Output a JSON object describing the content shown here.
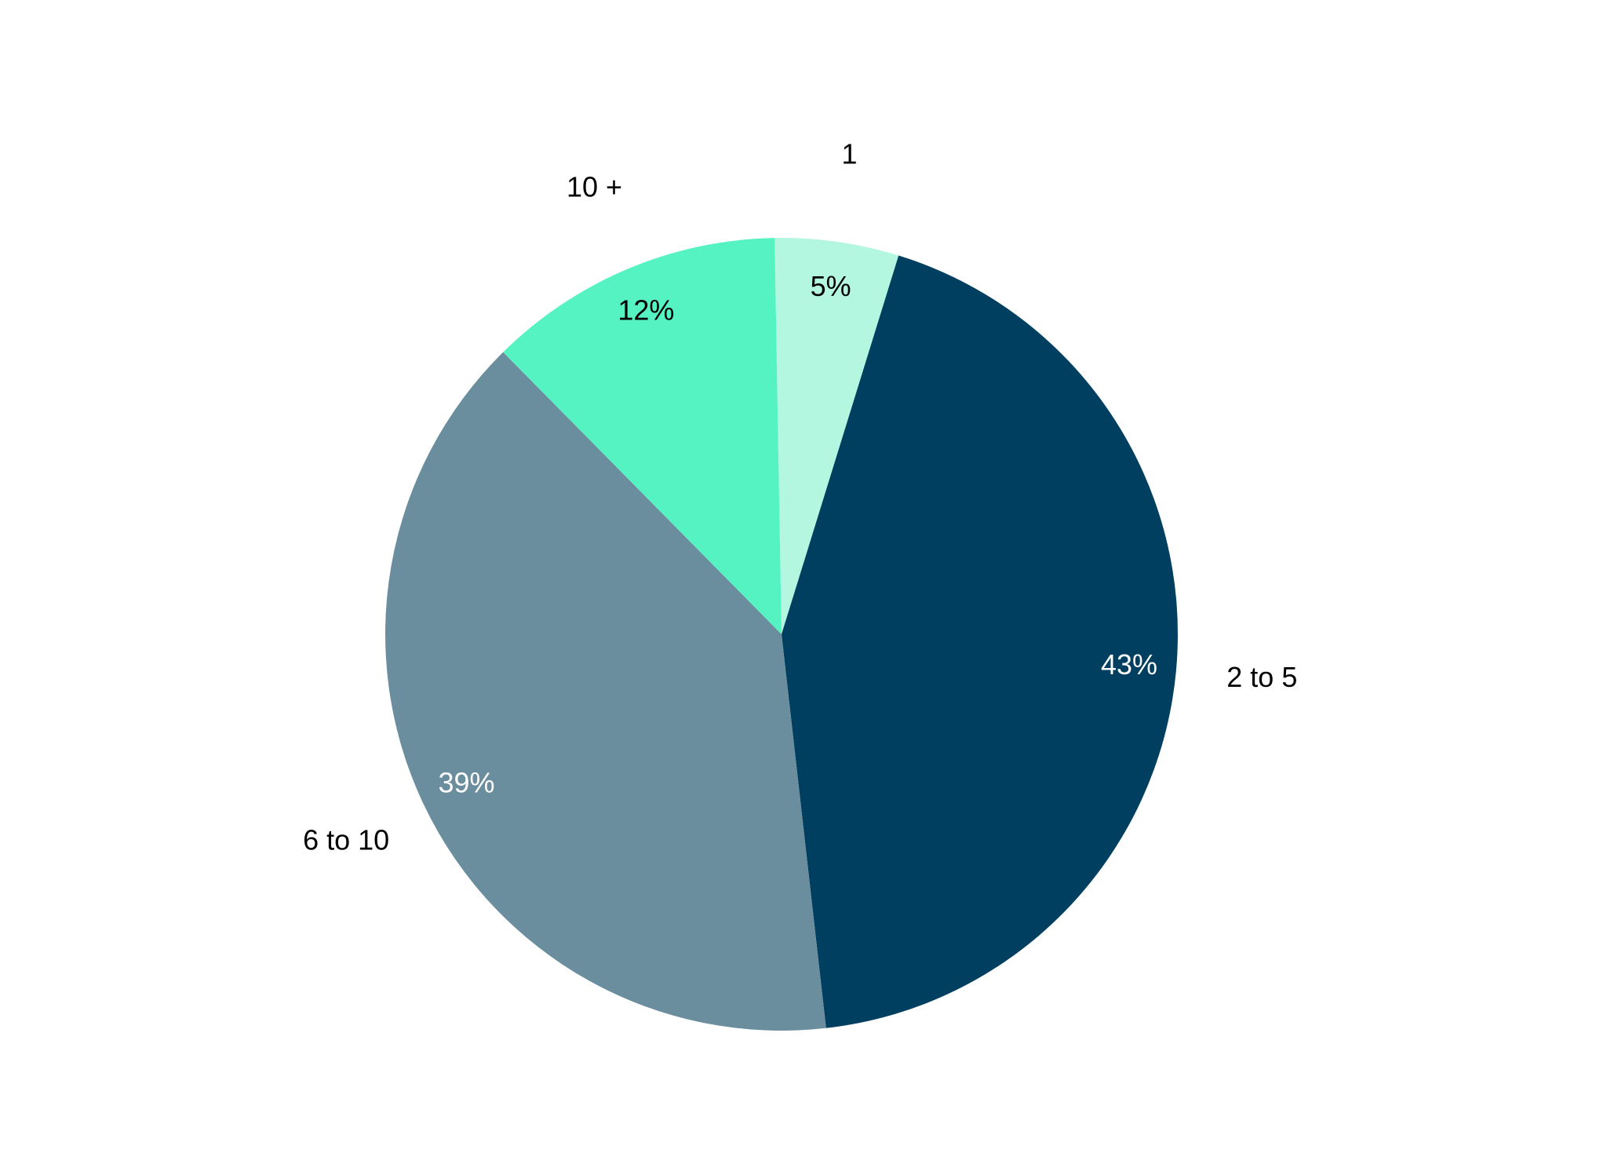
{
  "chart_data": {
    "type": "pie",
    "title": "",
    "categories": [
      "1",
      "2 to 5",
      "6 to 10",
      "10 +"
    ],
    "values": [
      5,
      43,
      39,
      12
    ],
    "value_labels": [
      "5%",
      "43%",
      "39%",
      "12%"
    ],
    "colors": [
      "#b3f7e1",
      "#003f5f",
      "#6b8e9f",
      "#56f3c2"
    ],
    "value_label_colors": [
      "#000000",
      "#ffffff",
      "#ffffff",
      "#000000"
    ],
    "category_label_color": "#000000",
    "legend": "none"
  }
}
